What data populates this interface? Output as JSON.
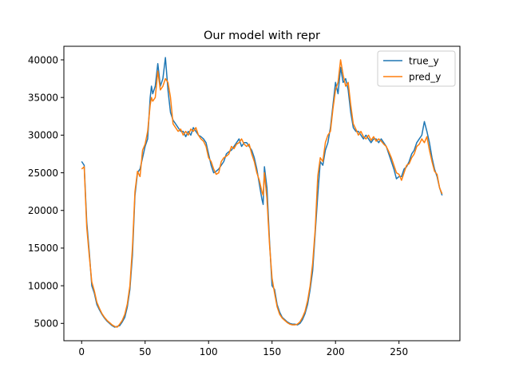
{
  "chart_data": {
    "type": "line",
    "title": "Our model with repr",
    "xlabel": "",
    "ylabel": "",
    "xlim": [
      -14,
      298
    ],
    "ylim": [
      2700,
      41800
    ],
    "xticks": [
      0,
      50,
      100,
      150,
      200,
      250
    ],
    "yticks": [
      5000,
      10000,
      15000,
      20000,
      25000,
      30000,
      35000,
      40000
    ],
    "grid": false,
    "legend_position": "top-right",
    "series": [
      {
        "name": "true_y",
        "color": "#1f77b4",
        "points": [
          [
            0,
            26500
          ],
          [
            2,
            26000
          ],
          [
            4,
            18500
          ],
          [
            6,
            14500
          ],
          [
            8,
            10000
          ],
          [
            10,
            9000
          ],
          [
            12,
            7500
          ],
          [
            14,
            6800
          ],
          [
            16,
            6200
          ],
          [
            18,
            5700
          ],
          [
            20,
            5300
          ],
          [
            22,
            5000
          ],
          [
            24,
            4700
          ],
          [
            26,
            4500
          ],
          [
            28,
            4600
          ],
          [
            30,
            4700
          ],
          [
            32,
            5200
          ],
          [
            34,
            5800
          ],
          [
            36,
            7200
          ],
          [
            38,
            9500
          ],
          [
            40,
            14000
          ],
          [
            42,
            22000
          ],
          [
            44,
            25000
          ],
          [
            46,
            25500
          ],
          [
            48,
            27000
          ],
          [
            50,
            28500
          ],
          [
            52,
            29500
          ],
          [
            54,
            35000
          ],
          [
            55,
            36500
          ],
          [
            56,
            35500
          ],
          [
            58,
            36500
          ],
          [
            60,
            39500
          ],
          [
            62,
            36500
          ],
          [
            64,
            37500
          ],
          [
            66,
            40300
          ],
          [
            68,
            36000
          ],
          [
            70,
            33000
          ],
          [
            72,
            32000
          ],
          [
            74,
            31500
          ],
          [
            76,
            31000
          ],
          [
            78,
            30500
          ],
          [
            80,
            30500
          ],
          [
            82,
            29800
          ],
          [
            84,
            30500
          ],
          [
            86,
            30000
          ],
          [
            88,
            31000
          ],
          [
            90,
            30500
          ],
          [
            92,
            30000
          ],
          [
            94,
            29800
          ],
          [
            96,
            29500
          ],
          [
            98,
            29000
          ],
          [
            100,
            27500
          ],
          [
            102,
            26000
          ],
          [
            104,
            25000
          ],
          [
            106,
            25200
          ],
          [
            108,
            25500
          ],
          [
            110,
            26000
          ],
          [
            112,
            26500
          ],
          [
            114,
            27500
          ],
          [
            116,
            27800
          ],
          [
            118,
            28000
          ],
          [
            120,
            28500
          ],
          [
            122,
            29000
          ],
          [
            124,
            29500
          ],
          [
            126,
            28500
          ],
          [
            128,
            29000
          ],
          [
            130,
            29000
          ],
          [
            132,
            28500
          ],
          [
            134,
            28000
          ],
          [
            136,
            27000
          ],
          [
            138,
            25500
          ],
          [
            140,
            23500
          ],
          [
            142,
            21500
          ],
          [
            143,
            20800
          ],
          [
            144,
            25800
          ],
          [
            146,
            23000
          ],
          [
            148,
            16000
          ],
          [
            150,
            10000
          ],
          [
            152,
            9500
          ],
          [
            154,
            7500
          ],
          [
            156,
            6500
          ],
          [
            158,
            5800
          ],
          [
            160,
            5500
          ],
          [
            162,
            5200
          ],
          [
            164,
            5000
          ],
          [
            166,
            4900
          ],
          [
            168,
            4900
          ],
          [
            170,
            4800
          ],
          [
            172,
            5000
          ],
          [
            174,
            5500
          ],
          [
            176,
            6300
          ],
          [
            178,
            7500
          ],
          [
            180,
            9500
          ],
          [
            182,
            12000
          ],
          [
            184,
            17000
          ],
          [
            186,
            22000
          ],
          [
            188,
            26500
          ],
          [
            190,
            26000
          ],
          [
            192,
            28000
          ],
          [
            194,
            29000
          ],
          [
            196,
            31000
          ],
          [
            198,
            34000
          ],
          [
            200,
            37000
          ],
          [
            202,
            35500
          ],
          [
            204,
            39000
          ],
          [
            206,
            37000
          ],
          [
            208,
            37500
          ],
          [
            210,
            36000
          ],
          [
            212,
            33000
          ],
          [
            214,
            31000
          ],
          [
            216,
            30500
          ],
          [
            218,
            30500
          ],
          [
            220,
            30000
          ],
          [
            222,
            29500
          ],
          [
            224,
            30000
          ],
          [
            226,
            29500
          ],
          [
            228,
            29000
          ],
          [
            230,
            29500
          ],
          [
            232,
            29500
          ],
          [
            234,
            29000
          ],
          [
            236,
            29500
          ],
          [
            238,
            29000
          ],
          [
            240,
            28500
          ],
          [
            242,
            27500
          ],
          [
            244,
            26500
          ],
          [
            246,
            25500
          ],
          [
            248,
            24200
          ],
          [
            250,
            24500
          ],
          [
            252,
            24500
          ],
          [
            254,
            25500
          ],
          [
            256,
            25800
          ],
          [
            258,
            26500
          ],
          [
            260,
            27500
          ],
          [
            262,
            28000
          ],
          [
            264,
            29000
          ],
          [
            266,
            29500
          ],
          [
            268,
            30000
          ],
          [
            270,
            31800
          ],
          [
            272,
            30500
          ],
          [
            274,
            29000
          ],
          [
            276,
            27000
          ],
          [
            278,
            25500
          ],
          [
            280,
            24500
          ],
          [
            282,
            23000
          ],
          [
            284,
            22000
          ]
        ]
      },
      {
        "name": "pred_y",
        "color": "#ff7f0e",
        "points": [
          [
            0,
            25500
          ],
          [
            2,
            25800
          ],
          [
            4,
            17800
          ],
          [
            6,
            14000
          ],
          [
            8,
            10500
          ],
          [
            10,
            9300
          ],
          [
            12,
            7800
          ],
          [
            14,
            7000
          ],
          [
            16,
            6300
          ],
          [
            18,
            5800
          ],
          [
            20,
            5400
          ],
          [
            22,
            5100
          ],
          [
            24,
            4800
          ],
          [
            26,
            4600
          ],
          [
            28,
            4500
          ],
          [
            30,
            4900
          ],
          [
            32,
            5400
          ],
          [
            34,
            6200
          ],
          [
            36,
            7600
          ],
          [
            38,
            10000
          ],
          [
            40,
            15000
          ],
          [
            42,
            22500
          ],
          [
            44,
            25200
          ],
          [
            46,
            24500
          ],
          [
            48,
            28000
          ],
          [
            50,
            28800
          ],
          [
            52,
            30500
          ],
          [
            54,
            34000
          ],
          [
            55,
            35000
          ],
          [
            56,
            34500
          ],
          [
            58,
            35000
          ],
          [
            60,
            38500
          ],
          [
            62,
            36000
          ],
          [
            64,
            36500
          ],
          [
            66,
            37500
          ],
          [
            68,
            37000
          ],
          [
            70,
            35000
          ],
          [
            72,
            31500
          ],
          [
            74,
            31000
          ],
          [
            76,
            30500
          ],
          [
            78,
            30800
          ],
          [
            80,
            30000
          ],
          [
            82,
            30500
          ],
          [
            84,
            30000
          ],
          [
            86,
            30800
          ],
          [
            88,
            30500
          ],
          [
            90,
            31000
          ],
          [
            92,
            30000
          ],
          [
            94,
            29500
          ],
          [
            96,
            29200
          ],
          [
            98,
            28500
          ],
          [
            100,
            27000
          ],
          [
            102,
            26500
          ],
          [
            104,
            25500
          ],
          [
            106,
            24800
          ],
          [
            108,
            25000
          ],
          [
            110,
            26500
          ],
          [
            112,
            27000
          ],
          [
            114,
            27200
          ],
          [
            116,
            27500
          ],
          [
            118,
            28500
          ],
          [
            120,
            28200
          ],
          [
            122,
            28800
          ],
          [
            124,
            29000
          ],
          [
            126,
            29500
          ],
          [
            128,
            28800
          ],
          [
            130,
            28500
          ],
          [
            132,
            28800
          ],
          [
            134,
            27500
          ],
          [
            136,
            26500
          ],
          [
            138,
            25000
          ],
          [
            140,
            24000
          ],
          [
            142,
            22500
          ],
          [
            143,
            22000
          ],
          [
            144,
            25000
          ],
          [
            146,
            21500
          ],
          [
            148,
            15500
          ],
          [
            150,
            11000
          ],
          [
            152,
            9000
          ],
          [
            154,
            7200
          ],
          [
            156,
            6200
          ],
          [
            158,
            5700
          ],
          [
            160,
            5400
          ],
          [
            162,
            5100
          ],
          [
            164,
            4900
          ],
          [
            166,
            4800
          ],
          [
            168,
            4800
          ],
          [
            170,
            4900
          ],
          [
            172,
            5200
          ],
          [
            174,
            5800
          ],
          [
            176,
            6600
          ],
          [
            178,
            8000
          ],
          [
            180,
            10000
          ],
          [
            182,
            13000
          ],
          [
            184,
            17500
          ],
          [
            186,
            24500
          ],
          [
            188,
            27000
          ],
          [
            190,
            26500
          ],
          [
            192,
            29000
          ],
          [
            194,
            30000
          ],
          [
            196,
            30500
          ],
          [
            198,
            33500
          ],
          [
            200,
            36000
          ],
          [
            202,
            37000
          ],
          [
            204,
            40000
          ],
          [
            206,
            38000
          ],
          [
            208,
            36500
          ],
          [
            210,
            37000
          ],
          [
            212,
            34000
          ],
          [
            214,
            31500
          ],
          [
            216,
            30800
          ],
          [
            218,
            30000
          ],
          [
            220,
            30500
          ],
          [
            222,
            29800
          ],
          [
            224,
            29500
          ],
          [
            226,
            30000
          ],
          [
            228,
            29300
          ],
          [
            230,
            29800
          ],
          [
            232,
            29200
          ],
          [
            234,
            29500
          ],
          [
            236,
            29200
          ],
          [
            238,
            28800
          ],
          [
            240,
            28500
          ],
          [
            242,
            27800
          ],
          [
            244,
            27000
          ],
          [
            246,
            26000
          ],
          [
            248,
            25000
          ],
          [
            250,
            24800
          ],
          [
            252,
            24000
          ],
          [
            254,
            25000
          ],
          [
            256,
            26000
          ],
          [
            258,
            26200
          ],
          [
            260,
            27000
          ],
          [
            262,
            27500
          ],
          [
            264,
            28500
          ],
          [
            266,
            28800
          ],
          [
            268,
            29500
          ],
          [
            270,
            29000
          ],
          [
            272,
            29800
          ],
          [
            274,
            28000
          ],
          [
            276,
            26500
          ],
          [
            278,
            25200
          ],
          [
            280,
            24800
          ],
          [
            282,
            23000
          ],
          [
            284,
            22200
          ]
        ]
      }
    ]
  }
}
